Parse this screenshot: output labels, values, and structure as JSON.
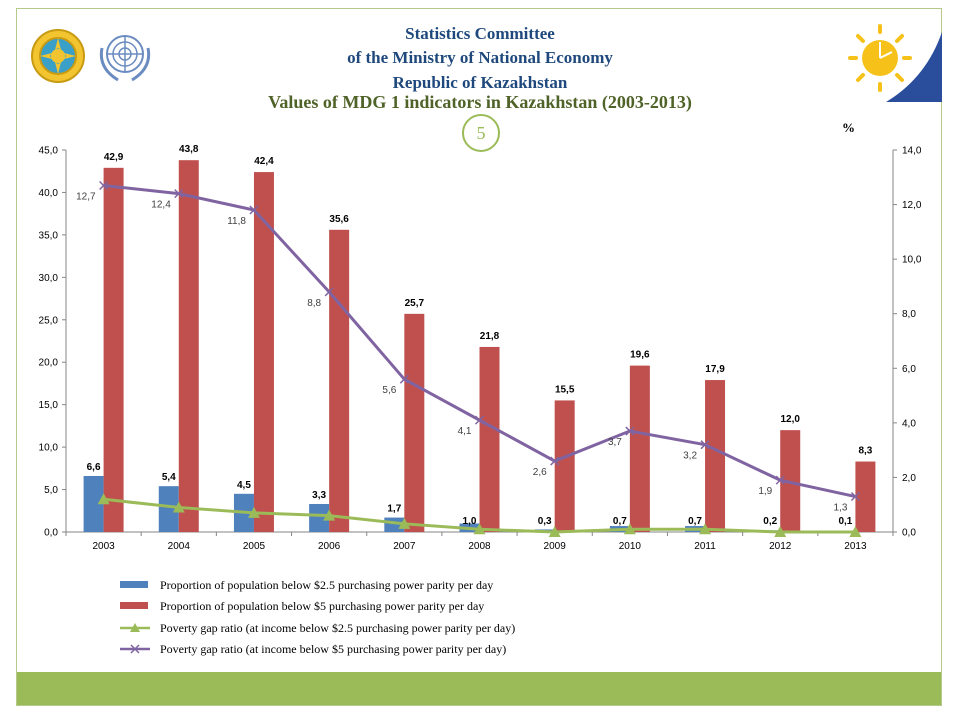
{
  "header": {
    "org_line1": "Statistics Committee",
    "org_line2": "of the Ministry of National Economy",
    "org_line3": "Republic of Kazakhstan",
    "title": "Values of MDG 1 indicators in Kazakhstan (2003-2013)",
    "unit": "%",
    "page_number": "5"
  },
  "colors": {
    "bar_25": "#4f81bd",
    "bar_5": "#c0504d",
    "line_25": "#9bbb59",
    "line_5": "#8064a2",
    "accent": "#9bbb59",
    "title": "#4f6228",
    "org": "#1f497d"
  },
  "logos": [
    "kazakhstan-emblem-icon",
    "un-emblem-icon",
    "statistics-committee-logo-icon"
  ],
  "chart_data": {
    "type": "bar",
    "categories": [
      "2003",
      "2004",
      "2005",
      "2006",
      "2007",
      "2008",
      "2009",
      "2010",
      "2011",
      "2012",
      "2013"
    ],
    "left_axis": {
      "ylim": [
        0,
        45
      ],
      "ticks": [
        "0,0",
        "5,0",
        "10,0",
        "15,0",
        "20,0",
        "25,0",
        "30,0",
        "35,0",
        "40,0",
        "45,0"
      ]
    },
    "right_axis": {
      "ylim": [
        0,
        14
      ],
      "ticks": [
        "0,0",
        "2,0",
        "4,0",
        "6,0",
        "8,0",
        "10,0",
        "12,0",
        "14,0"
      ]
    },
    "series": [
      {
        "name": "Proportion of population below $2.5 purchasing power parity per day",
        "type": "bar",
        "axis": "left",
        "values": [
          6.6,
          5.4,
          4.5,
          3.3,
          1.7,
          1.0,
          0.3,
          0.7,
          0.7,
          0.2,
          0.1
        ],
        "labels": [
          "6,6",
          "5,4",
          "4,5",
          "3,3",
          "1,7",
          "1,0",
          "0,3",
          "0,7",
          "0,7",
          "0,2",
          "0,1"
        ]
      },
      {
        "name": "Proportion of population below $5 purchasing power parity per day",
        "type": "bar",
        "axis": "left",
        "values": [
          42.9,
          43.8,
          42.4,
          35.6,
          25.7,
          21.8,
          15.5,
          19.6,
          17.9,
          12.0,
          8.3
        ],
        "labels": [
          "42,9",
          "43,8",
          "42,4",
          "35,6",
          "25,7",
          "21,8",
          "15,5",
          "19,6",
          "17,9",
          "12,0",
          "8,3"
        ]
      },
      {
        "name": "Poverty gap ratio (at income below $2.5 purchasing power parity per day)",
        "type": "line",
        "axis": "right",
        "marker": "triangle",
        "values": [
          1.2,
          0.9,
          0.7,
          0.6,
          0.3,
          0.1,
          0.0,
          0.1,
          0.1,
          0.0,
          0.0
        ]
      },
      {
        "name": "Poverty gap ratio (at income below $5 purchasing power parity per day)",
        "type": "line",
        "axis": "right",
        "marker": "x",
        "values": [
          12.7,
          12.4,
          11.8,
          8.8,
          5.6,
          4.1,
          2.6,
          3.7,
          3.2,
          1.9,
          1.3
        ],
        "labels": [
          "12,7",
          "12,4",
          "11,8",
          "8,8",
          "5,6",
          "4,1",
          "2,6",
          "3,7",
          "3,2",
          "1,9",
          "1,3"
        ]
      }
    ],
    "grid": false,
    "legend_position": "bottom"
  }
}
